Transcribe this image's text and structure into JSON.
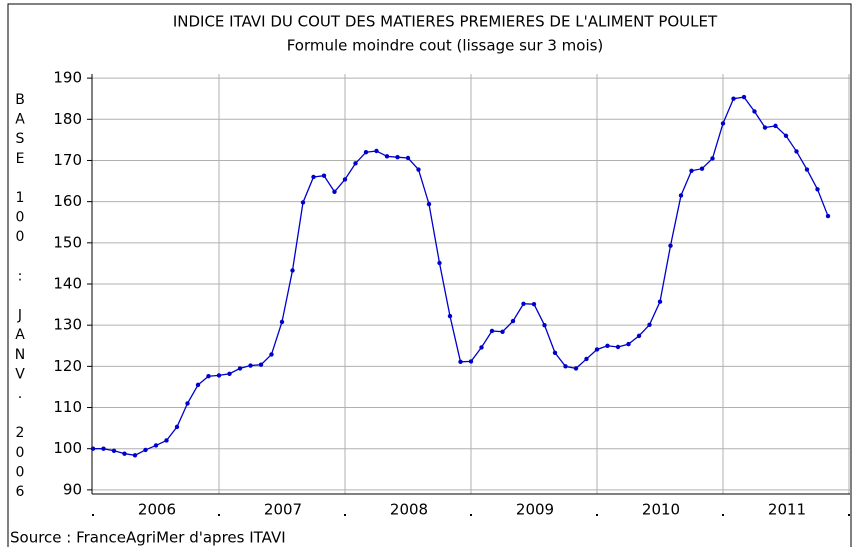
{
  "chart_data": {
    "type": "line",
    "title": "INDICE ITAVI DU COUT DES MATIERES PREMIERES DE L'ALIMENT POULET",
    "subtitle": "Formule moindre cout (lissage sur 3 mois)",
    "y_label": "BASE 100 : JANV. 2006",
    "source": "Source : FranceAgriMer d'apres ITAVI",
    "categories": [
      null,
      null,
      null,
      null,
      null,
      null,
      "2006",
      null,
      null,
      null,
      null,
      null,
      null,
      null,
      null,
      null,
      null,
      null,
      "2007",
      null,
      null,
      null,
      null,
      null,
      null,
      null,
      null,
      null,
      null,
      null,
      "2008",
      null,
      null,
      null,
      null,
      null,
      null,
      null,
      null,
      null,
      null,
      null,
      "2009",
      null,
      null,
      null,
      null,
      null,
      null,
      null,
      null,
      null,
      null,
      null,
      "2010",
      null,
      null,
      null,
      null,
      null,
      null,
      null,
      null,
      null,
      null,
      null,
      "2011",
      null,
      null,
      null,
      null
    ],
    "series": [
      {
        "name": "Indice",
        "color": "#0000cc",
        "values": [
          100,
          100,
          99.5,
          98.8,
          98.4,
          99.7,
          100.8,
          102,
          105.3,
          111,
          115.5,
          117.6,
          117.8,
          118.2,
          119.5,
          120.2,
          120.4,
          122.9,
          130.8,
          143.3,
          159.8,
          166,
          166.3,
          162.4,
          165.4,
          169.3,
          172,
          172.3,
          171,
          170.8,
          170.6,
          167.8,
          159.4,
          145.1,
          132.2,
          121.1,
          121.2,
          124.6,
          128.6,
          128.4,
          131,
          135.2,
          135.1,
          130,
          123.3,
          120,
          119.5,
          121.8,
          124.1,
          125,
          124.7,
          125.4,
          127.4,
          130.1,
          135.7,
          149.3,
          161.5,
          167.5,
          168,
          170.5,
          179,
          185,
          185.4,
          181.9,
          178,
          178.4,
          176,
          172.2,
          167.8,
          163,
          156.5
        ]
      }
    ],
    "ylim": [
      89,
      191
    ],
    "yticks": [
      90,
      100,
      110,
      120,
      130,
      140,
      150,
      160,
      170,
      180,
      190
    ],
    "grid": true
  }
}
